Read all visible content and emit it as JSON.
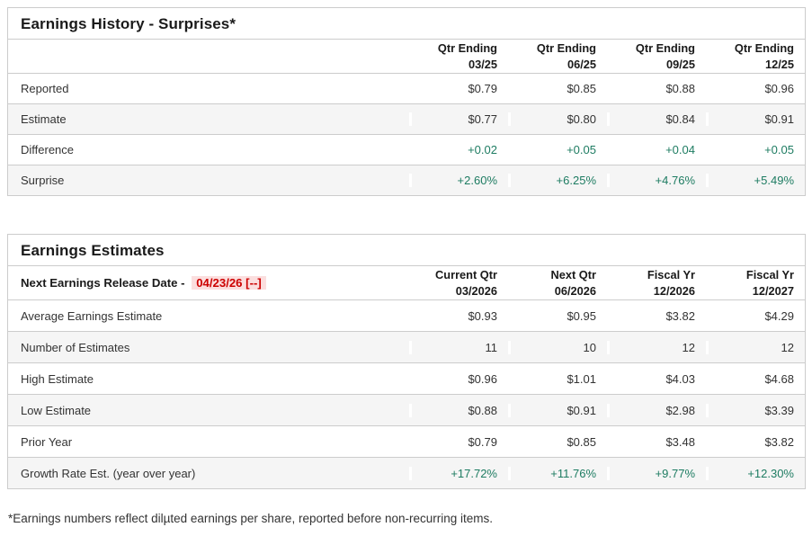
{
  "colors": {
    "green": "#1e7c62",
    "red": "#cc0000",
    "red_bg": "#fbdede",
    "row_alt": "#f5f5f5",
    "border": "#cccccc"
  },
  "history": {
    "title": "Earnings History - Surprises*",
    "columns": [
      {
        "line1": "Qtr Ending",
        "line2": "03/25"
      },
      {
        "line1": "Qtr Ending",
        "line2": "06/25"
      },
      {
        "line1": "Qtr Ending",
        "line2": "09/25"
      },
      {
        "line1": "Qtr Ending",
        "line2": "12/25"
      }
    ],
    "rows": [
      {
        "label": "Reported",
        "values": [
          "$0.79",
          "$0.85",
          "$0.88",
          "$0.96"
        ]
      },
      {
        "label": "Estimate",
        "values": [
          "$0.77",
          "$0.80",
          "$0.84",
          "$0.91"
        ]
      },
      {
        "label": "Difference",
        "values": [
          "+0.02",
          "+0.05",
          "+0.04",
          "+0.05"
        ]
      },
      {
        "label": "Surprise",
        "values": [
          "+2.60%",
          "+6.25%",
          "+4.76%",
          "+5.49%"
        ]
      }
    ]
  },
  "estimates": {
    "title": "Earnings Estimates",
    "release_date_label": "Next Earnings Release Date -",
    "release_date_value": "04/23/26 [--]",
    "columns": [
      {
        "line1": "Current Qtr",
        "line2": "03/2026"
      },
      {
        "line1": "Next Qtr",
        "line2": "06/2026"
      },
      {
        "line1": "Fiscal Yr",
        "line2": "12/2026"
      },
      {
        "line1": "Fiscal Yr",
        "line2": "12/2027"
      }
    ],
    "rows": [
      {
        "label": "Average Earnings Estimate",
        "values": [
          "$0.93",
          "$0.95",
          "$3.82",
          "$4.29"
        ]
      },
      {
        "label": "Number of Estimates",
        "values": [
          "11",
          "10",
          "12",
          "12"
        ]
      },
      {
        "label": "High Estimate",
        "values": [
          "$0.96",
          "$1.01",
          "$4.03",
          "$4.68"
        ]
      },
      {
        "label": "Low Estimate",
        "values": [
          "$0.88",
          "$0.91",
          "$2.98",
          "$3.39"
        ]
      },
      {
        "label": "Prior Year",
        "values": [
          "$0.79",
          "$0.85",
          "$3.48",
          "$3.82"
        ]
      },
      {
        "label": "Growth Rate Est. (year over year)",
        "values": [
          "+17.72%",
          "+11.76%",
          "+9.77%",
          "+12.30%"
        ]
      }
    ]
  },
  "footnote": "*Earnings numbers reflect dilµted earnings per share, reported before non-recurring items."
}
